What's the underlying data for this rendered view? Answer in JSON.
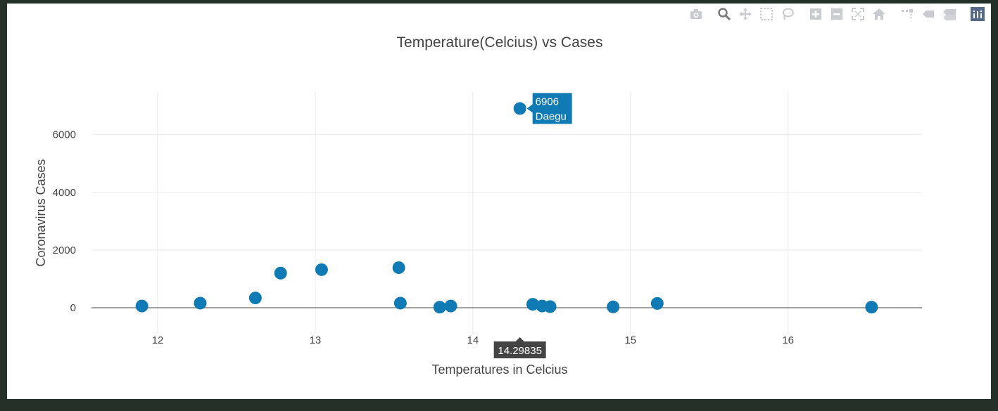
{
  "colors": {
    "marker": "#0f7ab4",
    "grid": "#e9e9e9",
    "zeroline": "#444444",
    "hover_bg": "#0f7ab4",
    "xhover_bg": "#444444",
    "modebar_icon": "#c9cbd0",
    "modebar_active": "#556a89"
  },
  "modebar": {
    "icons": [
      "camera-icon",
      "zoom-icon",
      "pan-icon",
      "box-select-icon",
      "lasso-icon",
      "zoom-in-icon",
      "zoom-out-icon",
      "autoscale-icon",
      "reset-axes-icon",
      "spike-lines-icon",
      "hover-closest-icon",
      "hover-compare-icon",
      "plotly-logo-icon"
    ]
  },
  "chart_data": {
    "type": "scatter",
    "title": "Temperature(Celcius) vs Cases",
    "xlabel": "Temperatures in Celcius",
    "ylabel": "Coronavirus Cases",
    "xlim": [
      11.58,
      16.85
    ],
    "ylim": [
      -900,
      7500
    ],
    "xticks": [
      12,
      13,
      14,
      15,
      16
    ],
    "yticks": [
      0,
      2000,
      4000,
      6000
    ],
    "grid": true,
    "points": [
      {
        "x": 11.9,
        "y": 60
      },
      {
        "x": 12.27,
        "y": 160
      },
      {
        "x": 12.62,
        "y": 340
      },
      {
        "x": 12.78,
        "y": 1200
      },
      {
        "x": 13.04,
        "y": 1320
      },
      {
        "x": 13.53,
        "y": 1390
      },
      {
        "x": 13.54,
        "y": 160
      },
      {
        "x": 13.79,
        "y": 20
      },
      {
        "x": 13.86,
        "y": 60
      },
      {
        "x": 14.29835,
        "y": 6906,
        "label": "Daegu"
      },
      {
        "x": 14.38,
        "y": 120
      },
      {
        "x": 14.44,
        "y": 60
      },
      {
        "x": 14.49,
        "y": 40
      },
      {
        "x": 14.89,
        "y": 30
      },
      {
        "x": 15.17,
        "y": 150
      },
      {
        "x": 16.53,
        "y": 20
      }
    ],
    "hover": {
      "point_index": 9,
      "y_text": "6906",
      "label_text": "Daegu",
      "x_text": "14.29835"
    }
  }
}
